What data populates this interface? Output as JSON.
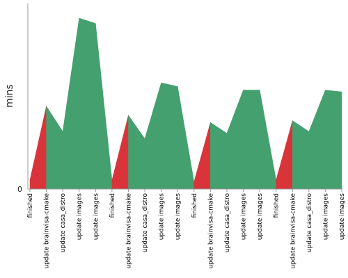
{
  "chart_data": {
    "type": "area",
    "ylabel": "mins",
    "yticks": [
      "0"
    ],
    "ylim": [
      0,
      100
    ],
    "categories": [
      "finished",
      "update brainvisa-cmake",
      "update casa_distro",
      "update images",
      "update images",
      "finished",
      "update brainvisa-cmake",
      "update casa_distro",
      "update images",
      "update images",
      "finished",
      "update brainvisa-cmake",
      "update casa_distro",
      "update images",
      "update images",
      "finished",
      "update brainvisa-cmake",
      "update casa_distro",
      "update images",
      "update images"
    ],
    "values": [
      5,
      46,
      32,
      95,
      92,
      5,
      41,
      28,
      59,
      57,
      4,
      37,
      31,
      55,
      55,
      5,
      38,
      32,
      55,
      54
    ],
    "colors": {
      "success": "#44a06e",
      "failed": "#d9343a",
      "axis": "#999999"
    }
  }
}
